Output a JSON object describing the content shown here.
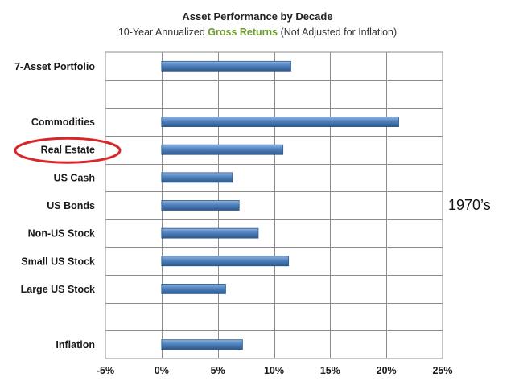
{
  "title": "Asset Performance by Decade",
  "subtitle": {
    "prefix": "10-Year Annualized ",
    "highlight": "Gross Returns",
    "suffix": " (Not Adjusted for Inflation)"
  },
  "decade_label": "1970’s",
  "highlighted_category": "Real Estate",
  "colors": {
    "bar": "#4f81bd",
    "bar_dark": "#2e5a8c",
    "highlight_ring": "#d9262b",
    "subtitle_highlight": "#6e9b2e",
    "grid": "#7f7f7f"
  },
  "chart_data": {
    "type": "bar",
    "orientation": "horizontal",
    "title": "Asset Performance by Decade",
    "categories": [
      "7-Asset Portfolio",
      "",
      "Commodities",
      "Real Estate",
      "US Cash",
      "US Bonds",
      "Non-US Stock",
      "Small US Stock",
      "Large US Stock",
      "",
      "Inflation"
    ],
    "values": [
      11.5,
      null,
      21.1,
      10.8,
      6.3,
      6.9,
      8.6,
      11.3,
      5.7,
      null,
      7.2
    ],
    "xlim": [
      -5,
      25
    ],
    "xticks": [
      -5,
      0,
      5,
      10,
      15,
      20,
      25
    ],
    "xtick_labels": [
      "-5%",
      "0%",
      "5%",
      "10%",
      "15%",
      "20%",
      "25%"
    ],
    "grid": true,
    "xlabel": "",
    "ylabel": ""
  }
}
